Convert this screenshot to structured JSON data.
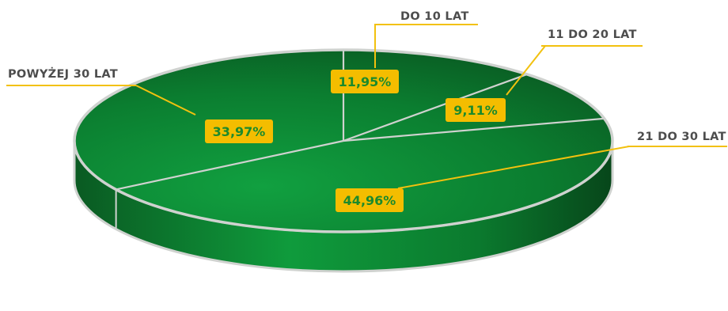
{
  "chart_data": {
    "type": "pie",
    "style": "3d",
    "categories": [
      "DO 10 LAT",
      "11 DO 20 LAT",
      "21 DO 30 LAT",
      "POWYŻEJ 30 LAT"
    ],
    "values": [
      11.95,
      9.11,
      44.96,
      33.97
    ],
    "value_labels": [
      "11,95%",
      "9,11%",
      "44,96%",
      "33,97%"
    ],
    "title": "",
    "colors": {
      "slice_light": "#11a040",
      "slice_dark": "#0a5a22",
      "separator": "#cfd2cf",
      "label_box": "#f4bd00",
      "leader_line": "#f2c10f",
      "value_text": "#1c8a2c",
      "category_text": "#4d4d4d"
    }
  }
}
